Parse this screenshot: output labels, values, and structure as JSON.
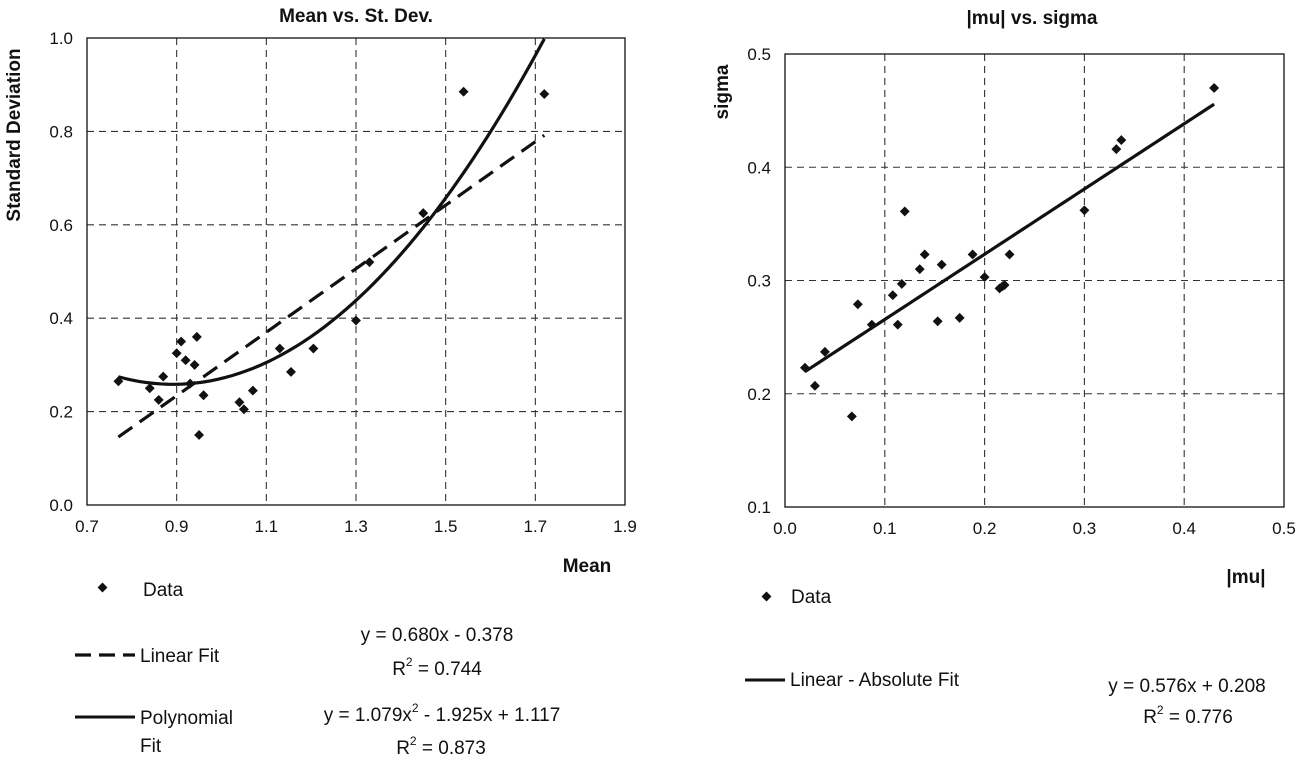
{
  "chart_data": [
    {
      "type": "scatter",
      "title": "Mean vs. St. Dev.",
      "xlabel": "Mean",
      "ylabel": "Standard Deviation",
      "xlim": [
        0.7,
        1.9
      ],
      "ylim": [
        0.0,
        1.0
      ],
      "xticks": [
        "0.7",
        "0.9",
        "1.1",
        "1.3",
        "1.5",
        "1.7",
        "1.9"
      ],
      "yticks": [
        "0.0",
        "0.2",
        "0.4",
        "0.6",
        "0.8",
        "1.0"
      ],
      "grid": true,
      "series": [
        {
          "name": "Data",
          "kind": "points",
          "x": [
            0.77,
            0.84,
            0.86,
            0.87,
            0.9,
            0.91,
            0.92,
            0.93,
            0.94,
            0.945,
            0.95,
            0.96,
            1.04,
            1.05,
            1.07,
            1.13,
            1.155,
            1.205,
            1.3,
            1.33,
            1.45,
            1.54,
            1.72
          ],
          "y": [
            0.265,
            0.25,
            0.225,
            0.275,
            0.325,
            0.35,
            0.31,
            0.26,
            0.3,
            0.36,
            0.15,
            0.235,
            0.22,
            0.205,
            0.245,
            0.335,
            0.285,
            0.335,
            0.395,
            0.52,
            0.625,
            0.885,
            0.88
          ]
        },
        {
          "name": "Linear Fit",
          "kind": "line",
          "style": "dashed",
          "x_range": [
            0.77,
            1.72
          ],
          "coef": [
            0.68,
            -0.378
          ]
        },
        {
          "name": "Polynomial Fit",
          "kind": "line",
          "style": "solid",
          "x_range": [
            0.77,
            1.72
          ],
          "coef": [
            1.079,
            -1.925,
            1.117
          ]
        }
      ],
      "legend": {
        "data": "Data",
        "linear_name": "Linear Fit",
        "linear_eq": "y = 0.680x - 0.378",
        "linear_r2_prefix": "R",
        "linear_r2_sup": "2",
        "linear_r2_value": " = 0.744",
        "poly_name_1": "Polynomial",
        "poly_name_2": "Fit",
        "poly_eq_a": "y = 1.079x",
        "poly_eq_sup": "2",
        "poly_eq_b": " - 1.925x + 1.117",
        "poly_r2_prefix": "R",
        "poly_r2_sup": "2",
        "poly_r2_value": " = 0.873"
      }
    },
    {
      "type": "scatter",
      "title": "|mu| vs. sigma",
      "xlabel": "|mu|",
      "ylabel": "sigma",
      "xlim": [
        0.0,
        0.5
      ],
      "ylim": [
        0.1,
        0.5
      ],
      "xticks": [
        "0.0",
        "0.1",
        "0.2",
        "0.3",
        "0.4",
        "0.5"
      ],
      "yticks": [
        "0.1",
        "0.2",
        "0.3",
        "0.4",
        "0.5"
      ],
      "grid": true,
      "series": [
        {
          "name": "Data",
          "kind": "points",
          "x": [
            0.02,
            0.03,
            0.04,
            0.067,
            0.073,
            0.087,
            0.108,
            0.113,
            0.117,
            0.12,
            0.135,
            0.14,
            0.153,
            0.157,
            0.175,
            0.188,
            0.2,
            0.215,
            0.218,
            0.22,
            0.225,
            0.3,
            0.332,
            0.337,
            0.43
          ],
          "y": [
            0.223,
            0.207,
            0.237,
            0.18,
            0.279,
            0.261,
            0.287,
            0.261,
            0.297,
            0.361,
            0.31,
            0.323,
            0.264,
            0.314,
            0.267,
            0.323,
            0.303,
            0.293,
            0.295,
            0.296,
            0.323,
            0.362,
            0.416,
            0.424,
            0.47
          ]
        },
        {
          "name": "Linear - Absolute Fit",
          "kind": "line",
          "style": "solid",
          "x_range": [
            0.02,
            0.43
          ],
          "coef": [
            0.576,
            0.208
          ]
        }
      ],
      "legend": {
        "data": "Data",
        "linear_name": "Linear - Absolute Fit",
        "linear_eq": "y = 0.576x + 0.208",
        "linear_r2_prefix": "R",
        "linear_r2_sup": "2",
        "linear_r2_value": " = 0.776"
      }
    }
  ]
}
